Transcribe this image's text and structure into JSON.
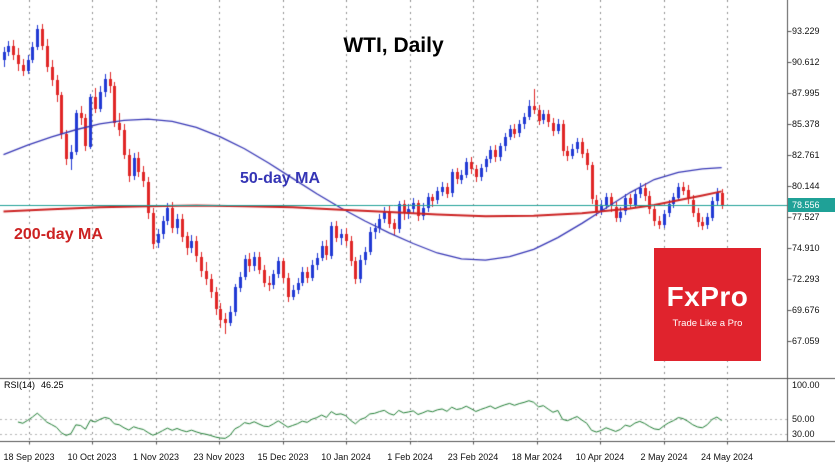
{
  "logo": {
    "name": "FxPro",
    "tagline": "Trade Like a Pro",
    "color": "#e0232d"
  },
  "chart_data": {
    "type": "candlestick",
    "title": "WTI, Daily",
    "symbol": "WTI",
    "timeframe": "Daily",
    "y_range": [
      63.95,
      95.85
    ],
    "y_tick_labels": [
      "93.229",
      "90.612",
      "87.995",
      "85.378",
      "82.761",
      "80.144",
      "77.527",
      "74.910",
      "72.293",
      "69.676",
      "67.059"
    ],
    "x_tick_labels": [
      "18 Sep 2023",
      "10 Oct 2023",
      "1 Nov 2023",
      "23 Nov 2023",
      "15 Dec 2023",
      "10 Jan 2024",
      "1 Feb 2024",
      "23 Feb 2024",
      "18 Mar 2024",
      "10 Apr 2024",
      "2 May 2024",
      "24 May 2024"
    ],
    "current_price": 78.556,
    "current_price_label": "78.556",
    "colors": {
      "bull": "#2139d4",
      "bear": "#e02626",
      "price_line": "#1fa197",
      "rsi": "#1e7d32",
      "grid": "#8f8f8f",
      "panel_border": "#555555"
    },
    "candles_ohlc": [
      [
        90.8,
        91.9,
        90.2,
        91.5
      ],
      [
        91.5,
        92.4,
        91.1,
        92.0
      ],
      [
        92.0,
        92.5,
        90.8,
        91.2
      ],
      [
        91.2,
        91.8,
        89.9,
        90.4
      ],
      [
        90.4,
        90.9,
        89.4,
        89.9
      ],
      [
        89.9,
        91.2,
        89.6,
        90.8
      ],
      [
        90.8,
        92.3,
        90.5,
        91.9
      ],
      [
        91.9,
        93.7,
        91.6,
        93.4
      ],
      [
        93.4,
        93.8,
        91.6,
        92.0
      ],
      [
        92.0,
        92.6,
        89.8,
        90.2
      ],
      [
        90.2,
        90.8,
        88.6,
        89.1
      ],
      [
        89.1,
        89.5,
        87.2,
        87.8
      ],
      [
        87.8,
        88.1,
        84.1,
        84.5
      ],
      [
        84.5,
        84.9,
        81.9,
        82.4
      ],
      [
        82.4,
        83.6,
        81.5,
        83.0
      ],
      [
        83.0,
        86.6,
        82.8,
        86.3
      ],
      [
        86.3,
        86.9,
        85.3,
        85.9
      ],
      [
        85.9,
        86.2,
        83.1,
        83.5
      ],
      [
        83.5,
        87.9,
        83.3,
        87.7
      ],
      [
        87.7,
        88.4,
        86.3,
        86.7
      ],
      [
        86.7,
        88.6,
        86.4,
        88.1
      ],
      [
        88.1,
        89.6,
        87.7,
        89.2
      ],
      [
        89.2,
        89.8,
        88.0,
        88.6
      ],
      [
        88.6,
        88.9,
        85.1,
        85.5
      ],
      [
        85.5,
        86.3,
        84.4,
        84.9
      ],
      [
        84.9,
        85.4,
        82.4,
        82.8
      ],
      [
        82.8,
        83.3,
        80.5,
        81.0
      ],
      [
        81.0,
        82.9,
        80.7,
        82.5
      ],
      [
        82.5,
        83.0,
        80.9,
        81.3
      ],
      [
        81.3,
        81.8,
        80.1,
        80.5
      ],
      [
        80.5,
        80.9,
        77.4,
        77.9
      ],
      [
        77.9,
        78.3,
        74.8,
        75.3
      ],
      [
        75.3,
        76.5,
        74.9,
        76.1
      ],
      [
        76.1,
        77.6,
        75.7,
        77.2
      ],
      [
        77.2,
        78.7,
        76.9,
        78.3
      ],
      [
        78.3,
        78.8,
        76.2,
        76.6
      ],
      [
        76.6,
        77.8,
        76.1,
        77.4
      ],
      [
        77.4,
        77.8,
        75.4,
        75.9
      ],
      [
        75.9,
        76.3,
        74.3,
        74.9
      ],
      [
        74.9,
        76.0,
        74.5,
        75.5
      ],
      [
        75.5,
        75.9,
        73.7,
        74.2
      ],
      [
        74.2,
        74.6,
        72.5,
        73.0
      ],
      [
        73.0,
        73.7,
        71.8,
        72.3
      ],
      [
        72.3,
        72.7,
        70.7,
        71.2
      ],
      [
        71.2,
        71.6,
        69.3,
        69.8
      ],
      [
        69.8,
        70.3,
        68.2,
        68.9
      ],
      [
        68.9,
        69.4,
        67.7,
        68.6
      ],
      [
        68.6,
        70.0,
        68.3,
        69.5
      ],
      [
        69.5,
        71.9,
        69.2,
        71.6
      ],
      [
        71.6,
        72.9,
        71.2,
        72.5
      ],
      [
        72.5,
        74.3,
        72.2,
        74.0
      ],
      [
        74.0,
        74.5,
        72.9,
        73.4
      ],
      [
        73.4,
        74.6,
        73.0,
        74.2
      ],
      [
        74.2,
        74.6,
        72.7,
        73.1
      ],
      [
        73.1,
        73.5,
        71.6,
        72.0
      ],
      [
        72.0,
        72.6,
        71.3,
        71.8
      ],
      [
        71.8,
        73.1,
        71.5,
        72.7
      ],
      [
        72.7,
        74.2,
        72.4,
        73.8
      ],
      [
        73.8,
        74.1,
        72.0,
        72.4
      ],
      [
        72.4,
        72.8,
        70.4,
        70.8
      ],
      [
        70.8,
        71.8,
        70.5,
        71.4
      ],
      [
        71.4,
        72.4,
        71.0,
        72.0
      ],
      [
        72.0,
        73.3,
        71.7,
        72.9
      ],
      [
        72.9,
        73.3,
        72.0,
        72.4
      ],
      [
        72.4,
        73.9,
        72.1,
        73.5
      ],
      [
        73.5,
        74.5,
        73.1,
        74.1
      ],
      [
        74.1,
        75.5,
        73.8,
        75.1
      ],
      [
        75.1,
        75.6,
        73.9,
        74.3
      ],
      [
        74.3,
        77.1,
        74.0,
        76.8
      ],
      [
        76.8,
        77.2,
        75.4,
        75.8
      ],
      [
        75.8,
        76.5,
        75.2,
        76.1
      ],
      [
        76.1,
        76.6,
        75.1,
        75.5
      ],
      [
        75.5,
        75.9,
        73.4,
        73.8
      ],
      [
        73.8,
        74.2,
        71.9,
        72.3
      ],
      [
        72.3,
        74.3,
        72.0,
        73.9
      ],
      [
        73.9,
        75.0,
        73.5,
        74.6
      ],
      [
        74.6,
        76.7,
        74.3,
        76.3
      ],
      [
        76.3,
        77.0,
        75.7,
        76.6
      ],
      [
        76.6,
        77.8,
        76.2,
        77.4
      ],
      [
        77.4,
        78.4,
        77.0,
        78.0
      ],
      [
        78.0,
        78.5,
        76.6,
        77.0
      ],
      [
        77.0,
        77.4,
        76.0,
        76.5
      ],
      [
        76.5,
        78.9,
        76.2,
        78.6
      ],
      [
        78.6,
        79.0,
        77.3,
        77.8
      ],
      [
        77.8,
        78.6,
        77.4,
        78.2
      ],
      [
        78.2,
        79.1,
        77.9,
        78.7
      ],
      [
        78.7,
        79.0,
        77.2,
        77.6
      ],
      [
        77.6,
        78.7,
        77.3,
        78.3
      ],
      [
        78.3,
        79.6,
        78.0,
        79.2
      ],
      [
        79.2,
        79.5,
        78.4,
        78.9
      ],
      [
        78.9,
        80.1,
        78.6,
        79.7
      ],
      [
        79.7,
        80.5,
        79.3,
        80.1
      ],
      [
        80.1,
        80.4,
        79.1,
        79.5
      ],
      [
        79.5,
        81.6,
        79.2,
        81.3
      ],
      [
        81.3,
        81.7,
        80.3,
        80.7
      ],
      [
        80.7,
        81.5,
        80.3,
        81.1
      ],
      [
        81.1,
        82.5,
        80.8,
        82.2
      ],
      [
        82.2,
        82.6,
        81.2,
        81.6
      ],
      [
        81.6,
        81.9,
        80.5,
        80.9
      ],
      [
        80.9,
        82.0,
        80.6,
        81.7
      ],
      [
        81.7,
        82.7,
        81.3,
        82.4
      ],
      [
        82.4,
        83.5,
        82.1,
        83.2
      ],
      [
        83.2,
        83.6,
        82.2,
        82.6
      ],
      [
        82.6,
        83.8,
        82.3,
        83.5
      ],
      [
        83.5,
        84.6,
        83.1,
        84.3
      ],
      [
        84.3,
        85.3,
        84.0,
        85.0
      ],
      [
        85.0,
        85.4,
        84.2,
        84.6
      ],
      [
        84.6,
        85.7,
        84.3,
        85.4
      ],
      [
        85.4,
        86.3,
        85.0,
        86.0
      ],
      [
        86.0,
        87.4,
        85.7,
        86.9
      ],
      [
        86.9,
        88.3,
        86.2,
        86.6
      ],
      [
        86.6,
        87.0,
        85.3,
        85.7
      ],
      [
        85.7,
        86.6,
        85.4,
        86.2
      ],
      [
        86.2,
        86.6,
        85.1,
        85.5
      ],
      [
        85.5,
        85.9,
        84.4,
        84.8
      ],
      [
        84.8,
        85.8,
        84.5,
        85.4
      ],
      [
        85.4,
        85.7,
        82.7,
        83.1
      ],
      [
        83.1,
        83.5,
        82.3,
        82.7
      ],
      [
        82.7,
        83.7,
        82.4,
        83.3
      ],
      [
        83.3,
        84.2,
        82.9,
        83.9
      ],
      [
        83.9,
        84.2,
        82.5,
        82.9
      ],
      [
        82.9,
        83.3,
        81.5,
        81.9
      ],
      [
        81.9,
        82.2,
        78.6,
        79.0
      ],
      [
        79.0,
        79.4,
        77.6,
        78.1
      ],
      [
        78.1,
        79.0,
        77.7,
        78.5
      ],
      [
        78.5,
        79.6,
        78.2,
        79.2
      ],
      [
        79.2,
        79.6,
        78.0,
        78.4
      ],
      [
        78.4,
        78.8,
        77.1,
        77.5
      ],
      [
        77.5,
        78.4,
        77.1,
        78.0
      ],
      [
        78.0,
        79.5,
        77.7,
        79.1
      ],
      [
        79.1,
        79.5,
        78.2,
        78.6
      ],
      [
        78.6,
        79.9,
        78.3,
        79.5
      ],
      [
        79.5,
        80.4,
        79.1,
        80.0
      ],
      [
        80.0,
        80.4,
        78.9,
        79.3
      ],
      [
        79.3,
        79.7,
        77.8,
        78.2
      ],
      [
        78.2,
        78.6,
        76.8,
        77.2
      ],
      [
        77.2,
        77.6,
        76.5,
        76.9
      ],
      [
        76.9,
        78.1,
        76.6,
        77.8
      ],
      [
        77.8,
        79.0,
        77.5,
        78.6
      ],
      [
        78.6,
        79.6,
        78.3,
        79.2
      ],
      [
        79.2,
        80.4,
        78.9,
        80.1
      ],
      [
        80.1,
        80.5,
        79.4,
        79.8
      ],
      [
        79.8,
        80.2,
        78.6,
        79.0
      ],
      [
        79.0,
        79.4,
        77.5,
        77.9
      ],
      [
        77.9,
        78.3,
        76.7,
        77.1
      ],
      [
        77.1,
        77.5,
        76.4,
        76.8
      ],
      [
        76.8,
        77.9,
        76.5,
        77.5
      ],
      [
        77.5,
        79.2,
        77.2,
        78.9
      ],
      [
        78.9,
        80.0,
        78.5,
        79.6
      ],
      [
        79.6,
        79.9,
        78.2,
        78.556
      ]
    ],
    "overlays": [
      {
        "name": "50-day MA",
        "color": "#3535b5",
        "points": [
          [
            0,
            82.8
          ],
          [
            5,
            83.6
          ],
          [
            10,
            84.3
          ],
          [
            15,
            84.9
          ],
          [
            20,
            85.4
          ],
          [
            25,
            85.7
          ],
          [
            30,
            85.8
          ],
          [
            35,
            85.6
          ],
          [
            40,
            85.1
          ],
          [
            45,
            84.3
          ],
          [
            50,
            83.3
          ],
          [
            55,
            82.1
          ],
          [
            60,
            80.8
          ],
          [
            65,
            79.5
          ],
          [
            70,
            78.3
          ],
          [
            75,
            77.2
          ],
          [
            80,
            76.2
          ],
          [
            85,
            75.3
          ],
          [
            90,
            74.5
          ],
          [
            95,
            74.0
          ],
          [
            100,
            73.9
          ],
          [
            105,
            74.2
          ],
          [
            110,
            74.8
          ],
          [
            115,
            75.8
          ],
          [
            120,
            77.0
          ],
          [
            125,
            78.3
          ],
          [
            130,
            79.6
          ],
          [
            135,
            80.7
          ],
          [
            140,
            81.3
          ],
          [
            145,
            81.6
          ],
          [
            149,
            81.7
          ]
        ]
      },
      {
        "name": "200-day MA",
        "color": "#cc2222",
        "points": [
          [
            0,
            78.0
          ],
          [
            10,
            78.2
          ],
          [
            20,
            78.35
          ],
          [
            30,
            78.45
          ],
          [
            40,
            78.5
          ],
          [
            50,
            78.45
          ],
          [
            60,
            78.35
          ],
          [
            70,
            78.15
          ],
          [
            80,
            77.95
          ],
          [
            90,
            77.75
          ],
          [
            100,
            77.6
          ],
          [
            110,
            77.65
          ],
          [
            120,
            77.85
          ],
          [
            130,
            78.25
          ],
          [
            135,
            78.55
          ],
          [
            140,
            78.95
          ],
          [
            145,
            79.35
          ],
          [
            149,
            79.7
          ]
        ]
      }
    ],
    "indicator": {
      "name_label": "RSI(14)",
      "period": 14,
      "current_value": 46.25,
      "axis_ticks": [
        {
          "level": 100,
          "label": "100.00"
        },
        {
          "level": 50,
          "label": "50.00"
        },
        {
          "level": 30,
          "label": "30.00"
        }
      ],
      "dashed_levels": [
        50,
        30
      ],
      "range": [
        20,
        104
      ]
    }
  }
}
